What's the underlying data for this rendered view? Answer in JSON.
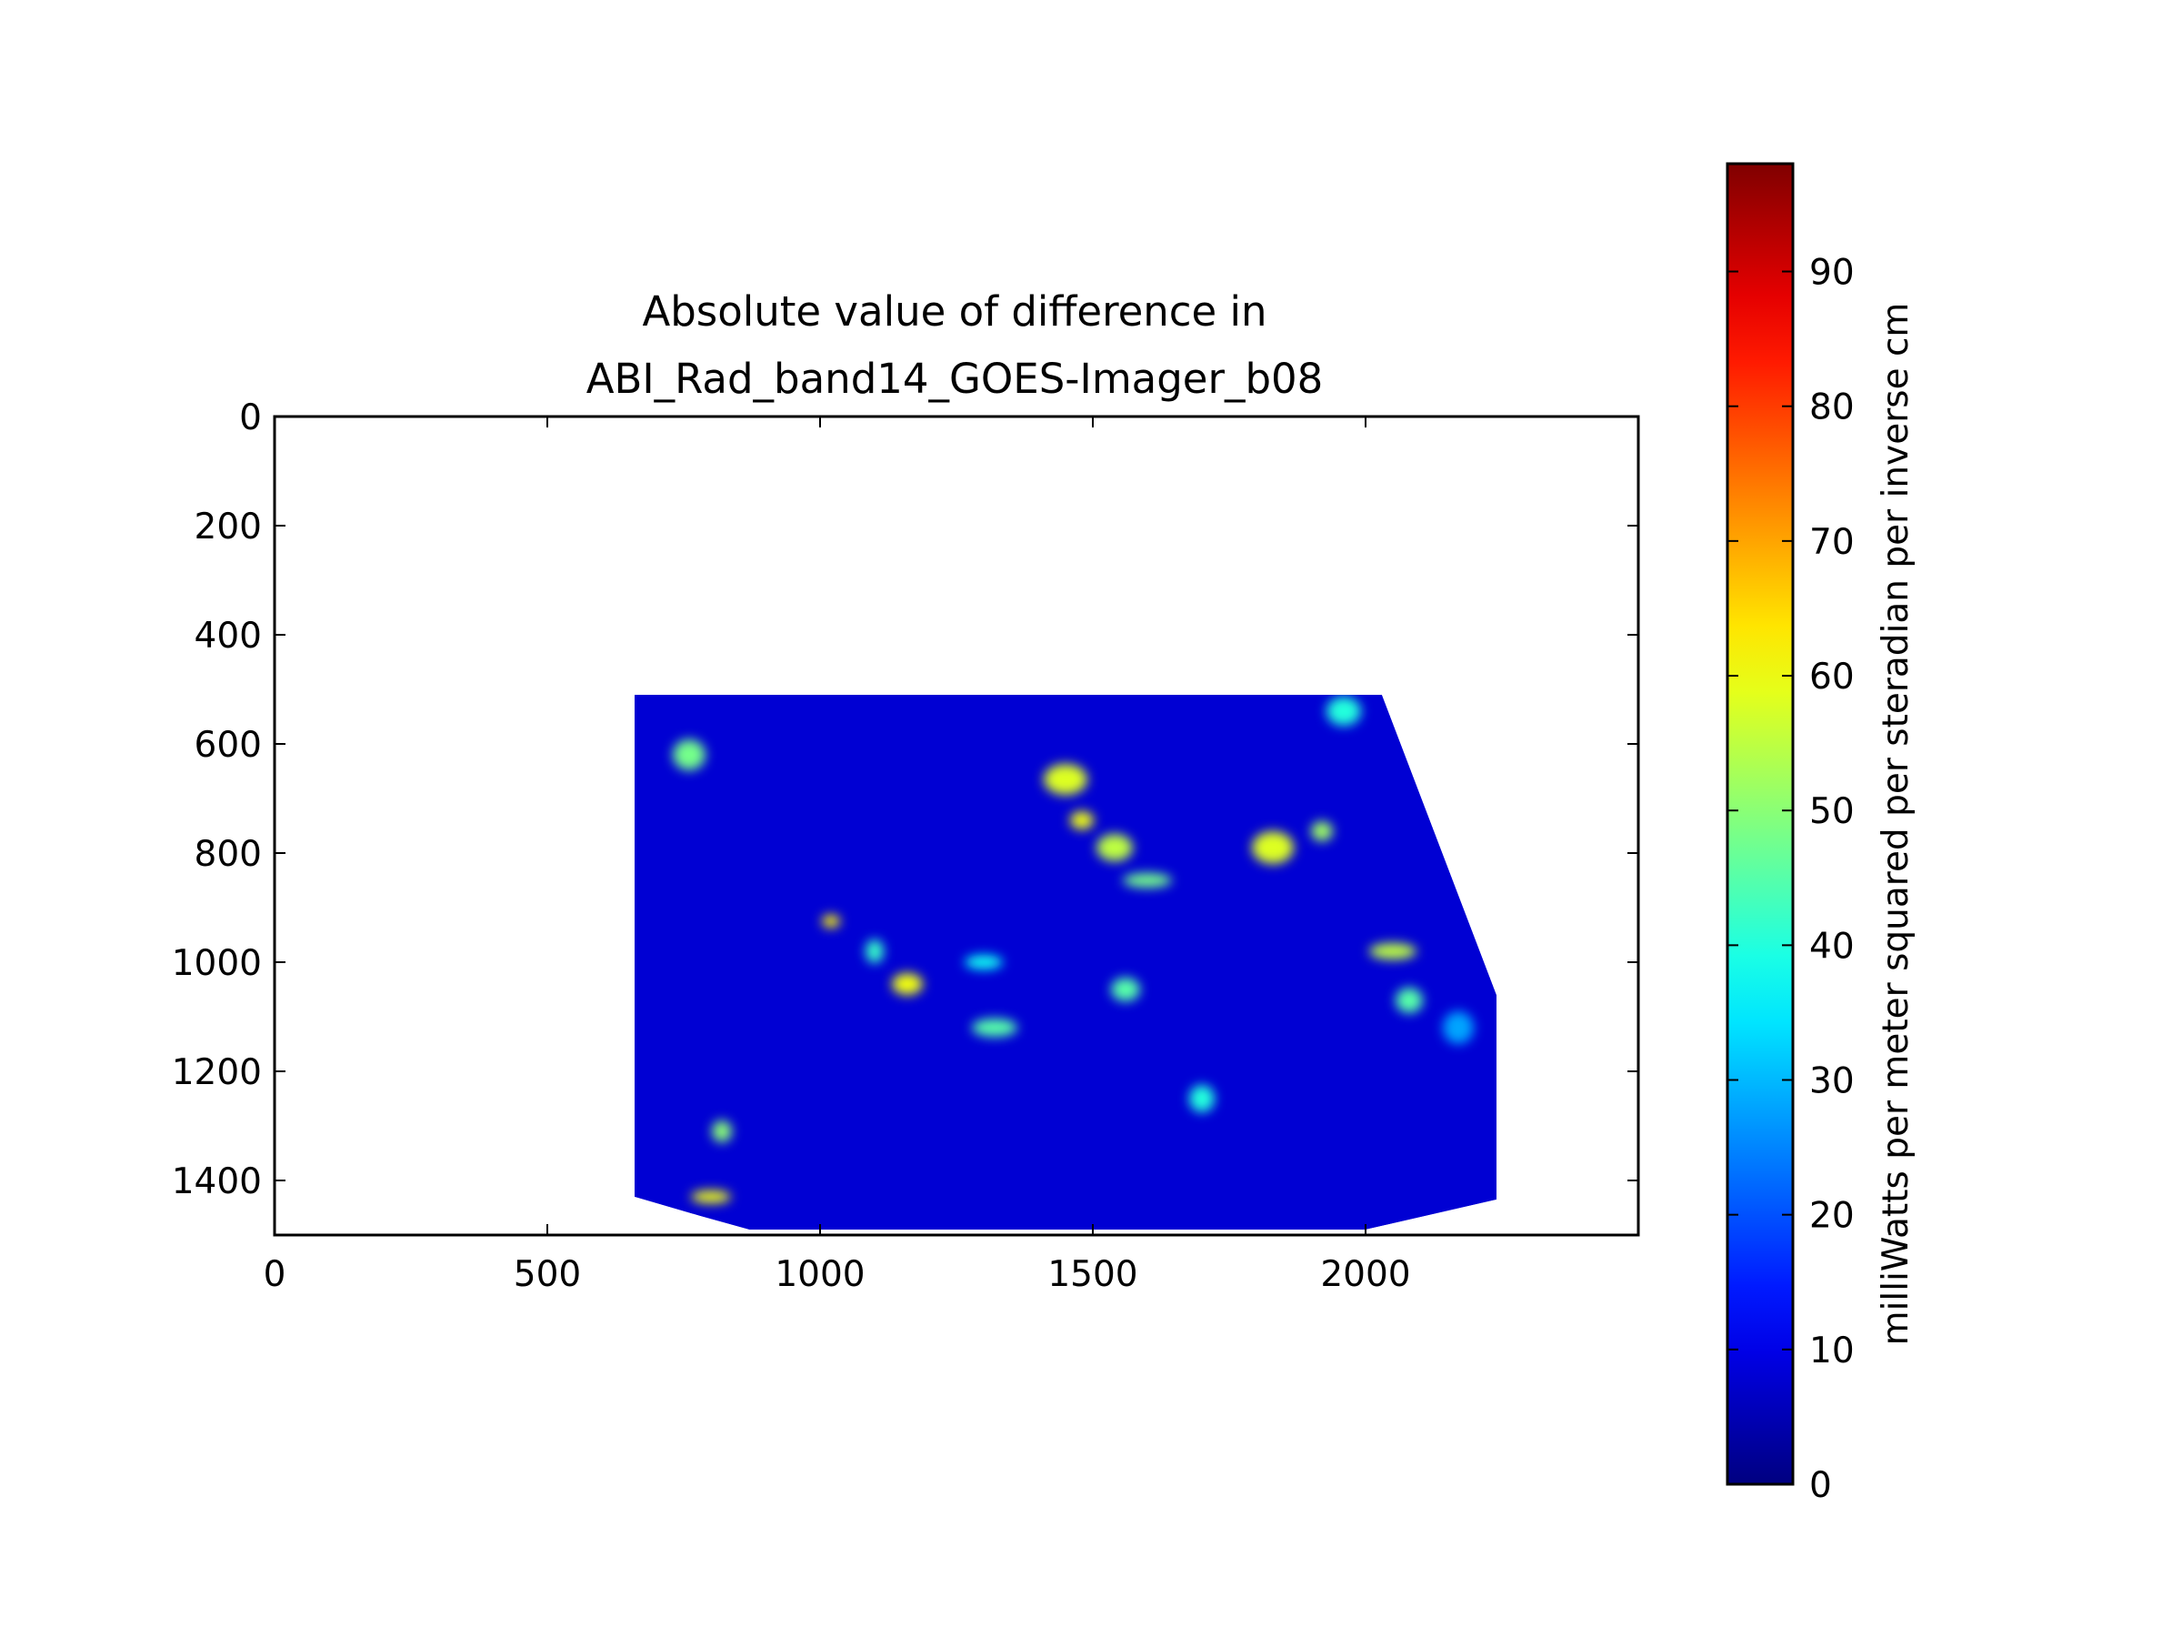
{
  "chart_data": {
    "type": "heatmap",
    "title_lines": [
      "Absolute value of difference in",
      "ABI_Rad_band14_GOES-Imager_b08"
    ],
    "xlabel": "",
    "ylabel": "",
    "xlim": [
      0,
      2500
    ],
    "ylim": [
      1500,
      0
    ],
    "x_ticks": [
      0,
      500,
      1000,
      1500,
      2000
    ],
    "x_tick_labels": [
      "0",
      "500",
      "1000",
      "1500",
      "2000"
    ],
    "y_ticks": [
      0,
      200,
      400,
      600,
      800,
      1000,
      1200,
      1400
    ],
    "y_tick_labels": [
      "0",
      "200",
      "400",
      "600",
      "800",
      "1000",
      "1200",
      "1400"
    ],
    "colormap": "jet",
    "colorbar": {
      "label": "milliWatts per meter squared per steradian per inverse cm",
      "range": [
        0,
        98
      ],
      "ticks": [
        0,
        10,
        20,
        30,
        40,
        50,
        60,
        70,
        80,
        90
      ],
      "tick_labels": [
        "0",
        "10",
        "20",
        "30",
        "40",
        "50",
        "60",
        "70",
        "80",
        "90"
      ],
      "placement": "right"
    },
    "data_footprint": [
      [
        660,
        510
      ],
      [
        2030,
        510
      ],
      [
        2240,
        1060
      ],
      [
        2240,
        1435
      ],
      [
        2000,
        1490
      ],
      [
        870,
        1490
      ],
      [
        780,
        1465
      ],
      [
        660,
        1430
      ]
    ],
    "background_level": 8,
    "features": [
      {
        "x": 1020,
        "y": 925,
        "value": 62
      },
      {
        "x": 1160,
        "y": 1040,
        "value": 60
      },
      {
        "x": 1450,
        "y": 665,
        "value": 58
      },
      {
        "x": 1480,
        "y": 740,
        "value": 60
      },
      {
        "x": 1540,
        "y": 790,
        "value": 55
      },
      {
        "x": 1600,
        "y": 850,
        "value": 48
      },
      {
        "x": 1560,
        "y": 1050,
        "value": 45
      },
      {
        "x": 1830,
        "y": 790,
        "value": 58
      },
      {
        "x": 1920,
        "y": 760,
        "value": 52
      },
      {
        "x": 1960,
        "y": 540,
        "value": 40
      },
      {
        "x": 2050,
        "y": 980,
        "value": 55
      },
      {
        "x": 2080,
        "y": 1070,
        "value": 45
      },
      {
        "x": 800,
        "y": 1430,
        "value": 60
      },
      {
        "x": 820,
        "y": 1310,
        "value": 50
      },
      {
        "x": 760,
        "y": 620,
        "value": 48
      },
      {
        "x": 1320,
        "y": 1120,
        "value": 45
      },
      {
        "x": 1700,
        "y": 1250,
        "value": 40
      },
      {
        "x": 1300,
        "y": 1000,
        "value": 38
      },
      {
        "x": 1100,
        "y": 980,
        "value": 42
      },
      {
        "x": 2170,
        "y": 1120,
        "value": 28
      }
    ]
  }
}
